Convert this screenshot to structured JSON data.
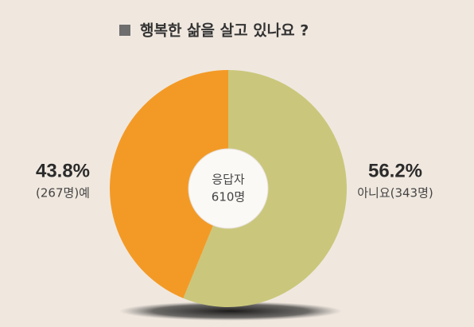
{
  "chart_data": {
    "type": "pie",
    "title": "행복한 삶을 살고 있나요 ?",
    "categories": [
      "아니요(343명)",
      "(267명)예"
    ],
    "values": [
      56.2,
      43.8
    ],
    "value_labels": [
      "56.2%",
      "43.8%"
    ],
    "colors": [
      "#cac77c",
      "#f39a26"
    ],
    "center_label": [
      "응답자",
      "610명"
    ]
  }
}
